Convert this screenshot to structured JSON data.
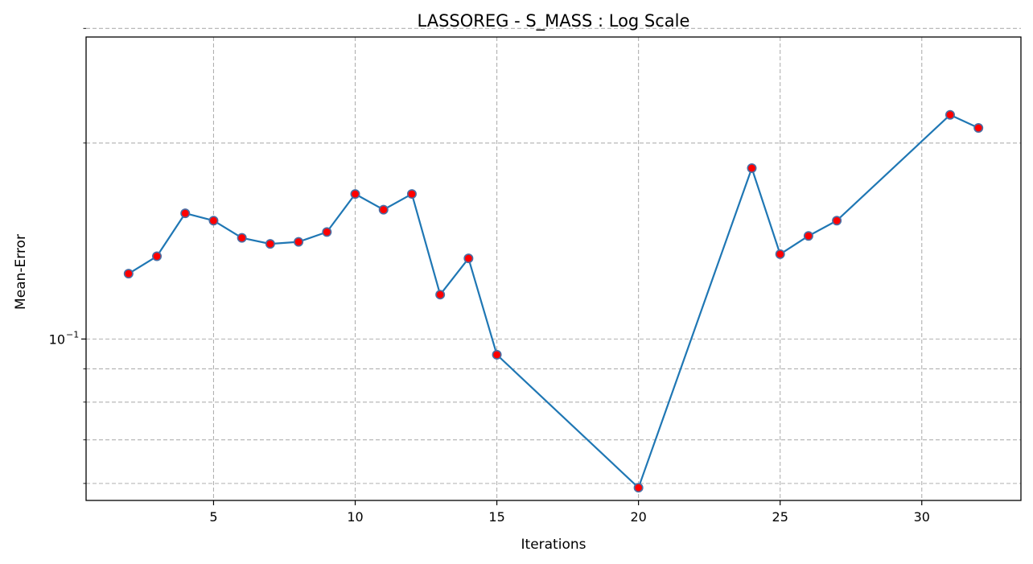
{
  "chart_data": {
    "type": "line",
    "title": "LASSOREG - S_MASS : Log Scale",
    "xlabel": "Iterations",
    "ylabel": "Mean-Error",
    "yscale": "log",
    "xlim": [
      0.5,
      33.5
    ],
    "ylim": [
      0.0565,
      0.291
    ],
    "x_ticks": [
      5,
      10,
      15,
      20,
      25,
      30
    ],
    "y_major_ticks": [
      {
        "value": 0.1,
        "base": "10",
        "exponent": "−1"
      }
    ],
    "y_minor_ticks": [
      0.06,
      0.07,
      0.08,
      0.09,
      0.2,
      0.3
    ],
    "grid": true,
    "series": [
      {
        "x": [
          2,
          3,
          4,
          5,
          6,
          7,
          8,
          9,
          10,
          11,
          12,
          13,
          14,
          15,
          20,
          24,
          25,
          26,
          27,
          31,
          32
        ],
        "values": [
          0.126,
          0.134,
          0.156,
          0.152,
          0.143,
          0.14,
          0.141,
          0.146,
          0.167,
          0.158,
          0.167,
          0.117,
          0.133,
          0.0946,
          0.0591,
          0.183,
          0.135,
          0.144,
          0.152,
          0.221,
          0.211
        ],
        "line_color": "#1f77b4",
        "marker_fill": "#ff0000",
        "marker_edge": "#4a6fa5"
      }
    ]
  }
}
